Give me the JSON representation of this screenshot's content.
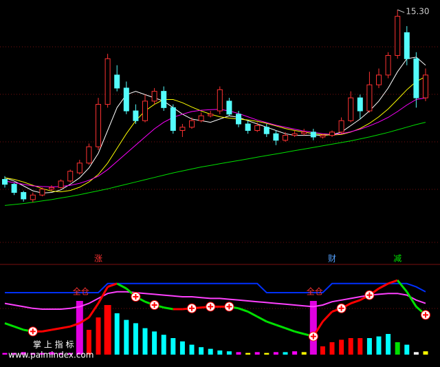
{
  "chart_data": [
    {
      "type": "candlestick",
      "ylim": [
        8,
        15.6
      ],
      "high_label": "15.30",
      "up_color": "#ff3232",
      "down_color": "#54fcfc",
      "candles": [
        [
          10.1,
          10.2,
          9.85,
          9.95
        ],
        [
          9.95,
          10.0,
          9.62,
          9.7
        ],
        [
          9.7,
          9.75,
          9.42,
          9.5
        ],
        [
          9.48,
          9.7,
          9.4,
          9.62
        ],
        [
          9.62,
          9.85,
          9.58,
          9.8
        ],
        [
          9.8,
          9.92,
          9.75,
          9.85
        ],
        [
          9.85,
          10.1,
          9.82,
          10.05
        ],
        [
          10.05,
          10.4,
          10.0,
          10.35
        ],
        [
          10.3,
          10.7,
          10.25,
          10.6
        ],
        [
          10.6,
          11.2,
          10.55,
          11.1
        ],
        [
          11.1,
          12.6,
          11.0,
          12.4
        ],
        [
          12.4,
          13.95,
          12.3,
          13.8
        ],
        [
          13.3,
          13.6,
          12.8,
          12.9
        ],
        [
          12.9,
          13.1,
          12.1,
          12.2
        ],
        [
          12.2,
          12.4,
          11.8,
          11.9
        ],
        [
          11.9,
          12.7,
          11.85,
          12.5
        ],
        [
          12.5,
          12.9,
          12.4,
          12.8
        ],
        [
          12.8,
          12.95,
          12.2,
          12.3
        ],
        [
          12.3,
          12.4,
          11.5,
          11.6
        ],
        [
          11.6,
          11.8,
          11.4,
          11.7
        ],
        [
          11.7,
          12.0,
          11.65,
          11.9
        ],
        [
          11.9,
          12.15,
          11.85,
          12.05
        ],
        [
          12.05,
          12.2,
          12.0,
          12.1
        ],
        [
          12.2,
          12.95,
          12.1,
          12.85
        ],
        [
          12.5,
          12.6,
          12.05,
          12.1
        ],
        [
          12.1,
          12.2,
          11.7,
          11.8
        ],
        [
          11.8,
          11.9,
          11.5,
          11.6
        ],
        [
          11.6,
          11.85,
          11.55,
          11.75
        ],
        [
          11.7,
          11.8,
          11.4,
          11.5
        ],
        [
          11.5,
          11.6,
          11.15,
          11.3
        ],
        [
          11.3,
          11.55,
          11.25,
          11.45
        ],
        [
          11.45,
          11.6,
          11.4,
          11.5
        ],
        [
          11.5,
          11.65,
          11.45,
          11.55
        ],
        [
          11.55,
          11.65,
          11.3,
          11.4
        ],
        [
          11.4,
          11.5,
          11.35,
          11.45
        ],
        [
          11.45,
          11.6,
          11.4,
          11.55
        ],
        [
          11.55,
          12.0,
          11.5,
          11.9
        ],
        [
          11.9,
          12.8,
          11.85,
          12.6
        ],
        [
          12.6,
          12.7,
          11.95,
          12.2
        ],
        [
          12.2,
          13.4,
          12.15,
          13.0
        ],
        [
          13.0,
          13.5,
          12.9,
          13.3
        ],
        [
          13.3,
          14.0,
          13.2,
          13.9
        ],
        [
          13.9,
          15.3,
          13.8,
          15.1
        ],
        [
          14.6,
          14.8,
          13.6,
          13.8
        ],
        [
          13.8,
          14.0,
          12.3,
          12.6
        ],
        [
          12.6,
          13.5,
          12.5,
          13.3
        ]
      ],
      "series": [
        {
          "color": "#ffffff",
          "values": [
            10.15,
            10.05,
            9.9,
            9.75,
            9.68,
            9.7,
            9.78,
            9.95,
            10.15,
            10.45,
            10.9,
            11.6,
            12.3,
            12.7,
            12.8,
            12.7,
            12.6,
            12.5,
            12.3,
            12.1,
            11.95,
            11.9,
            11.85,
            11.95,
            12.05,
            12.0,
            11.9,
            11.8,
            11.7,
            11.6,
            11.5,
            11.45,
            11.45,
            11.46,
            11.45,
            11.47,
            11.55,
            11.75,
            11.95,
            12.2,
            12.5,
            12.9,
            13.4,
            13.8,
            13.85,
            13.6
          ]
        },
        {
          "color": "#ffff00",
          "values": [
            10.15,
            10.1,
            10.02,
            9.92,
            9.82,
            9.74,
            9.72,
            9.76,
            9.86,
            10.02,
            10.25,
            10.6,
            11.05,
            11.5,
            11.9,
            12.2,
            12.4,
            12.55,
            12.55,
            12.45,
            12.32,
            12.2,
            12.1,
            12.02,
            11.98,
            11.95,
            11.92,
            11.88,
            11.82,
            11.74,
            11.66,
            11.6,
            11.55,
            11.5,
            11.47,
            11.46,
            11.48,
            11.55,
            11.66,
            11.82,
            12.02,
            12.26,
            12.55,
            12.85,
            13.1,
            13.25
          ]
        },
        {
          "color": "#ff00ff",
          "values": [
            10.05,
            10.0,
            9.95,
            9.9,
            9.88,
            9.87,
            9.88,
            9.92,
            9.98,
            10.07,
            10.2,
            10.4,
            10.65,
            10.9,
            11.15,
            11.4,
            11.65,
            11.85,
            12.0,
            12.1,
            12.18,
            12.22,
            12.24,
            12.25,
            12.2,
            12.12,
            12.02,
            11.92,
            11.84,
            11.76,
            11.7,
            11.64,
            11.58,
            11.54,
            11.5,
            11.48,
            11.5,
            11.56,
            11.64,
            11.74,
            11.86,
            12.0,
            12.18,
            12.38,
            12.55,
            12.6
          ]
        },
        {
          "color": "#00e000",
          "values": [
            9.3,
            9.33,
            9.36,
            9.4,
            9.44,
            9.48,
            9.53,
            9.58,
            9.63,
            9.69,
            9.75,
            9.81,
            9.88,
            9.95,
            10.02,
            10.09,
            10.16,
            10.23,
            10.3,
            10.36,
            10.42,
            10.48,
            10.53,
            10.58,
            10.63,
            10.68,
            10.73,
            10.78,
            10.83,
            10.88,
            10.93,
            10.98,
            11.03,
            11.08,
            11.13,
            11.18,
            11.23,
            11.28,
            11.34,
            11.4,
            11.47,
            11.54,
            11.62,
            11.7,
            11.78,
            11.85
          ]
        }
      ],
      "signals": [
        {
          "label": "涨",
          "index": 10,
          "color": "#ff3232"
        },
        {
          "label": "财",
          "index": 35,
          "color": "#54a0fc"
        },
        {
          "label": "减",
          "index": 42,
          "color": "#00e000"
        }
      ]
    },
    {
      "type": "indicator",
      "ylim": [
        0,
        100
      ],
      "label": "掌 上 指 标",
      "watermark": "www.palmindex.com",
      "bars": [
        2,
        2,
        3,
        2,
        2,
        3,
        2,
        2,
        65,
        30,
        45,
        60,
        50,
        42,
        38,
        32,
        28,
        24,
        20,
        16,
        12,
        9,
        7,
        5,
        4,
        3,
        2,
        3,
        2,
        3,
        3,
        4,
        3,
        65,
        10,
        15,
        18,
        20,
        20,
        20,
        22,
        25,
        15,
        12,
        3,
        4
      ],
      "bar_colors": [
        "#ff00ff",
        "#ff00ff",
        "#ff00ff",
        "#ff00ff",
        "#ff00ff",
        "#ff00ff",
        "#ff00ff",
        "#ff00ff",
        "#e000e0",
        "#ff0000",
        "#ff0000",
        "#ff0000",
        "#00ffff",
        "#00ffff",
        "#00ffff",
        "#00ffff",
        "#00ffff",
        "#00ffff",
        "#00ffff",
        "#00ffff",
        "#00ffff",
        "#00ffff",
        "#00ffff",
        "#00ffff",
        "#00ffff",
        "#ff00ff",
        "#ffff00",
        "#ff00ff",
        "#ffff00",
        "#ff00ff",
        "#00ffff",
        "#ff00ff",
        "#ffff00",
        "#e000e0",
        "#ff0000",
        "#ff0000",
        "#ff0000",
        "#ff0000",
        "#ff0000",
        "#00ffff",
        "#00ffff",
        "#00ffff",
        "#00e000",
        "#00ffff",
        "#ffffff",
        "#ffff00"
      ],
      "series": [
        {
          "color": "#0030ff",
          "values": [
            75,
            75,
            75,
            75,
            75,
            75,
            75,
            75,
            75,
            75,
            75,
            86,
            86,
            86,
            86,
            86,
            86,
            86,
            86,
            86,
            86,
            86,
            86,
            86,
            86,
            86,
            86,
            86,
            75,
            75,
            75,
            75,
            75,
            75,
            75,
            86,
            86,
            86,
            86,
            86,
            86,
            86,
            86,
            86,
            82,
            76
          ]
        },
        {
          "color": "#ff40ff",
          "values": [
            62,
            60,
            58,
            56,
            55,
            55,
            55,
            56,
            58,
            62,
            68,
            74,
            76,
            76,
            75,
            74,
            73,
            72,
            71,
            70,
            70,
            69,
            68,
            68,
            67,
            66,
            65,
            64,
            63,
            62,
            61,
            60,
            59,
            58,
            60,
            64,
            66,
            68,
            70,
            72,
            73,
            74,
            74,
            72,
            66,
            62
          ]
        }
      ],
      "trend": {
        "up_color": "#ff0000",
        "down_color": "#00e000",
        "values": [
          38,
          34,
          30,
          28,
          28,
          30,
          32,
          34,
          38,
          45,
          62,
          82,
          86,
          80,
          70,
          64,
          60,
          57,
          55,
          55,
          56,
          57,
          58,
          58,
          58,
          56,
          52,
          46,
          40,
          36,
          32,
          28,
          25,
          22,
          40,
          52,
          56,
          62,
          66,
          72,
          80,
          86,
          90,
          76,
          58,
          48
        ]
      },
      "plus_signals": [
        3,
        14,
        16,
        20,
        22,
        24,
        33,
        36,
        39,
        45
      ],
      "full_position": [
        {
          "label": "全仓",
          "index": 8
        },
        {
          "label": "全仓",
          "index": 33
        }
      ]
    }
  ]
}
